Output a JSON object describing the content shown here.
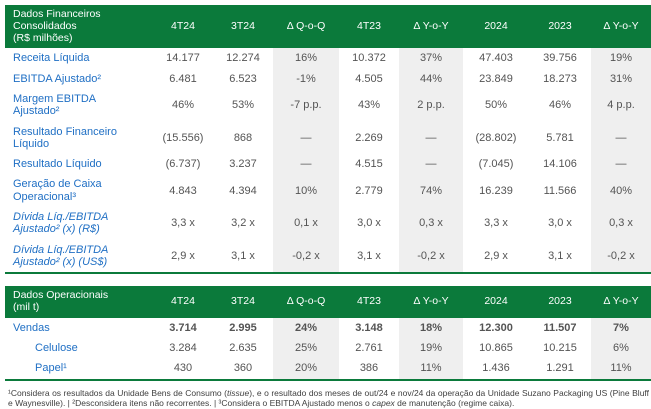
{
  "colors": {
    "header-green": "#0b7a3b",
    "label-blue": "#1f6fc4",
    "value-gray": "#545454",
    "band-gray": "#efefef",
    "footnote-gray": "#3f3f3f"
  },
  "financial": {
    "title": "Dados Financeiros Consolidados",
    "unit": "(R$ milhões)",
    "columns": [
      "4T24",
      "3T24",
      "Δ Q-o-Q",
      "4T23",
      "Δ Y-o-Y",
      "2024",
      "2023",
      "Δ Y-o-Y"
    ],
    "rows": [
      {
        "label": "Receita Líquida",
        "values": [
          "14.177",
          "12.274",
          "16%",
          "10.372",
          "37%",
          "47.403",
          "39.756",
          "19%"
        ]
      },
      {
        "label": "EBITDA Ajustado²",
        "values": [
          "6.481",
          "6.523",
          "-1%",
          "4.505",
          "44%",
          "23.849",
          "18.273",
          "31%"
        ]
      },
      {
        "label": "Margem EBITDA Ajustado²",
        "values": [
          "46%",
          "53%",
          "-7 p.p.",
          "43%",
          "2 p.p.",
          "50%",
          "46%",
          "4 p.p."
        ]
      },
      {
        "label": "Resultado Financeiro Líquido",
        "values": [
          "(15.556)",
          "868",
          "—",
          "2.269",
          "—",
          "(28.802)",
          "5.781",
          "—"
        ]
      },
      {
        "label": "Resultado Líquido",
        "values": [
          "(6.737)",
          "3.237",
          "—",
          "4.515",
          "—",
          "(7.045)",
          "14.106",
          "—"
        ]
      },
      {
        "label": "Geração de Caixa Operacional³",
        "values": [
          "4.843",
          "4.394",
          "10%",
          "2.779",
          "74%",
          "16.239",
          "11.566",
          "40%"
        ]
      },
      {
        "label": "Dívida Líq./EBITDA Ajustado² (x) (R$)",
        "italic": true,
        "values": [
          "3,3 x",
          "3,2 x",
          "0,1 x",
          "3,0 x",
          "0,3 x",
          "3,3 x",
          "3,0 x",
          "0,3 x"
        ]
      },
      {
        "label": "Dívida Líq./EBITDA Ajustado² (x) (US$)",
        "italic": true,
        "values": [
          "2,9 x",
          "3,1 x",
          "-0,2 x",
          "3,1 x",
          "-0,2 x",
          "2,9 x",
          "3,1 x",
          "-0,2 x"
        ]
      }
    ]
  },
  "operational": {
    "title": "Dados Operacionais",
    "unit": "(mil t)",
    "columns": [
      "4T24",
      "3T24",
      "Δ Q-o-Q",
      "4T23",
      "Δ Y-o-Y",
      "2024",
      "2023",
      "Δ Y-o-Y"
    ],
    "rows": [
      {
        "label": "Vendas",
        "bold": true,
        "values": [
          "3.714",
          "2.995",
          "24%",
          "3.148",
          "18%",
          "12.300",
          "11.507",
          "7%"
        ]
      },
      {
        "label": "Celulose",
        "indent": true,
        "values": [
          "3.284",
          "2.635",
          "25%",
          "2.761",
          "19%",
          "10.865",
          "10.215",
          "6%"
        ]
      },
      {
        "label": "Papel¹",
        "indent": true,
        "values": [
          "430",
          "360",
          "20%",
          "386",
          "11%",
          "1.436",
          "1.291",
          "11%"
        ]
      }
    ]
  },
  "footnote_segments": [
    {
      "t": "¹Considera os resultados da Unidade Bens de Consumo ("
    },
    {
      "t": "tissue",
      "i": true
    },
    {
      "t": "), e o resultado dos meses de out/24 e nov/24 da operação da Unidade Suzano Packaging US (Pine Bluff e Waynesville).  | ²Desconsidera itens não recorrentes. | ³Considera o EBITDA Ajustado menos o "
    },
    {
      "t": "capex",
      "i": true
    },
    {
      "t": " de manutenção (regime caixa)."
    }
  ]
}
